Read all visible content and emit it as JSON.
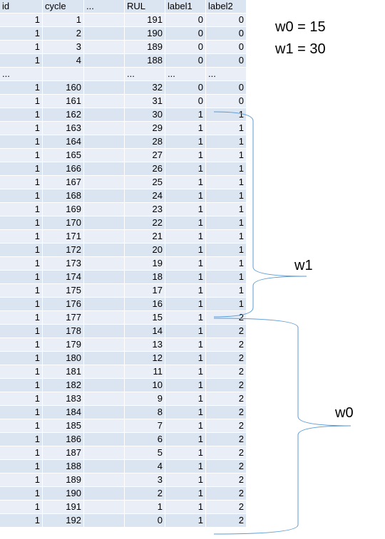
{
  "table": {
    "headers": [
      "id",
      "cycle",
      "...",
      "RUL",
      "label1",
      "label2"
    ],
    "rows": [
      [
        "1",
        "1",
        "",
        "191",
        "0",
        "0"
      ],
      [
        "1",
        "2",
        "",
        "190",
        "0",
        "0"
      ],
      [
        "1",
        "3",
        "",
        "189",
        "0",
        "0"
      ],
      [
        "1",
        "4",
        "",
        "188",
        "0",
        "0"
      ],
      [
        "...",
        "",
        "",
        "...",
        "...",
        "..."
      ],
      [
        "1",
        "160",
        "",
        "32",
        "0",
        "0"
      ],
      [
        "1",
        "161",
        "",
        "31",
        "0",
        "0"
      ],
      [
        "1",
        "162",
        "",
        "30",
        "1",
        "1"
      ],
      [
        "1",
        "163",
        "",
        "29",
        "1",
        "1"
      ],
      [
        "1",
        "164",
        "",
        "28",
        "1",
        "1"
      ],
      [
        "1",
        "165",
        "",
        "27",
        "1",
        "1"
      ],
      [
        "1",
        "166",
        "",
        "26",
        "1",
        "1"
      ],
      [
        "1",
        "167",
        "",
        "25",
        "1",
        "1"
      ],
      [
        "1",
        "168",
        "",
        "24",
        "1",
        "1"
      ],
      [
        "1",
        "169",
        "",
        "23",
        "1",
        "1"
      ],
      [
        "1",
        "170",
        "",
        "22",
        "1",
        "1"
      ],
      [
        "1",
        "171",
        "",
        "21",
        "1",
        "1"
      ],
      [
        "1",
        "172",
        "",
        "20",
        "1",
        "1"
      ],
      [
        "1",
        "173",
        "",
        "19",
        "1",
        "1"
      ],
      [
        "1",
        "174",
        "",
        "18",
        "1",
        "1"
      ],
      [
        "1",
        "175",
        "",
        "17",
        "1",
        "1"
      ],
      [
        "1",
        "176",
        "",
        "16",
        "1",
        "1"
      ],
      [
        "1",
        "177",
        "",
        "15",
        "1",
        "2"
      ],
      [
        "1",
        "178",
        "",
        "14",
        "1",
        "2"
      ],
      [
        "1",
        "179",
        "",
        "13",
        "1",
        "2"
      ],
      [
        "1",
        "180",
        "",
        "12",
        "1",
        "2"
      ],
      [
        "1",
        "181",
        "",
        "11",
        "1",
        "2"
      ],
      [
        "1",
        "182",
        "",
        "10",
        "1",
        "2"
      ],
      [
        "1",
        "183",
        "",
        "9",
        "1",
        "2"
      ],
      [
        "1",
        "184",
        "",
        "8",
        "1",
        "2"
      ],
      [
        "1",
        "185",
        "",
        "7",
        "1",
        "2"
      ],
      [
        "1",
        "186",
        "",
        "6",
        "1",
        "2"
      ],
      [
        "1",
        "187",
        "",
        "5",
        "1",
        "2"
      ],
      [
        "1",
        "188",
        "",
        "4",
        "1",
        "2"
      ],
      [
        "1",
        "189",
        "",
        "3",
        "1",
        "2"
      ],
      [
        "1",
        "190",
        "",
        "2",
        "1",
        "2"
      ],
      [
        "1",
        "191",
        "",
        "1",
        "1",
        "2"
      ],
      [
        "1",
        "192",
        "",
        "0",
        "1",
        "2"
      ]
    ]
  },
  "params": {
    "w0": "w0 = 15",
    "w1": "w1 = 30"
  },
  "braces": {
    "w1_label": "w1",
    "w0_label": "w0",
    "brace_color": "#5b9bd5"
  },
  "colors": {
    "row_odd": "#dbe4f1",
    "row_even": "#e9eef7"
  }
}
